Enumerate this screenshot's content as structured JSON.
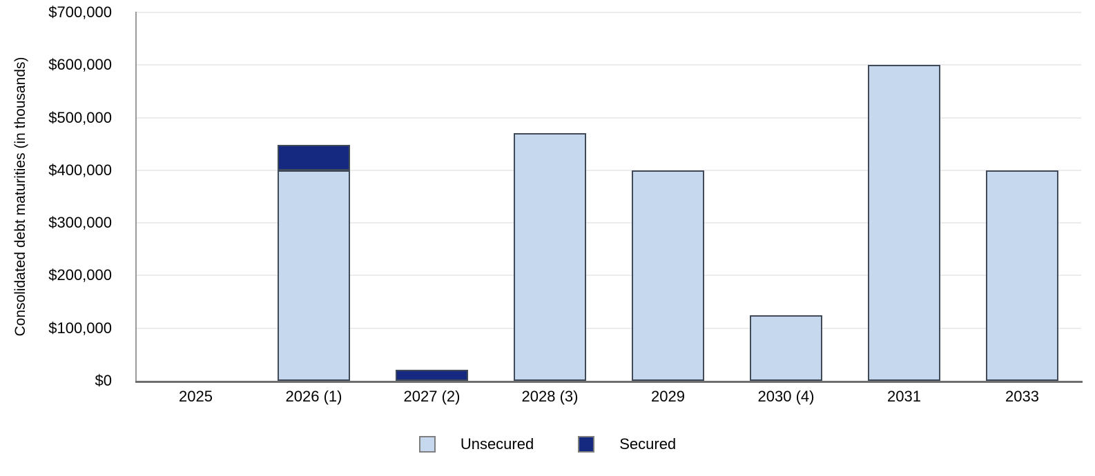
{
  "chart_data": {
    "type": "bar",
    "stacked": true,
    "title": "",
    "xlabel": "",
    "ylabel": "Consolidated debt maturities (in thousands)",
    "categories": [
      "2025",
      "2026 (1)",
      "2027 (2)",
      "2028 (3)",
      "2029",
      "2030 (4)",
      "2031",
      "2033"
    ],
    "series": [
      {
        "name": "Unsecured",
        "color": "#c5d8ee",
        "values": [
          0,
          400000,
          0,
          470000,
          400000,
          125000,
          600000,
          400000
        ]
      },
      {
        "name": "Secured",
        "color": "#14297f",
        "values": [
          0,
          48000,
          21000,
          0,
          0,
          0,
          0,
          0
        ]
      }
    ],
    "ylim": [
      0,
      700000
    ],
    "ytick_step": 100000,
    "ytick_labels": [
      "$0",
      "$100,000",
      "$200,000",
      "$300,000",
      "$400,000",
      "$500,000",
      "$600,000",
      "$700,000"
    ],
    "grid": true,
    "legend_position": "bottom"
  },
  "colors": {
    "unsecured_fill": "#c5d8ee",
    "secured_fill": "#14297f",
    "bar_border": "#404a58",
    "gridline": "#ececec",
    "y_axis_line": "#9a9a9a",
    "baseline": "#6e6e6e",
    "legend_swatch_border": "#7f7f7f",
    "text": "#000000",
    "background": "#ffffff"
  }
}
